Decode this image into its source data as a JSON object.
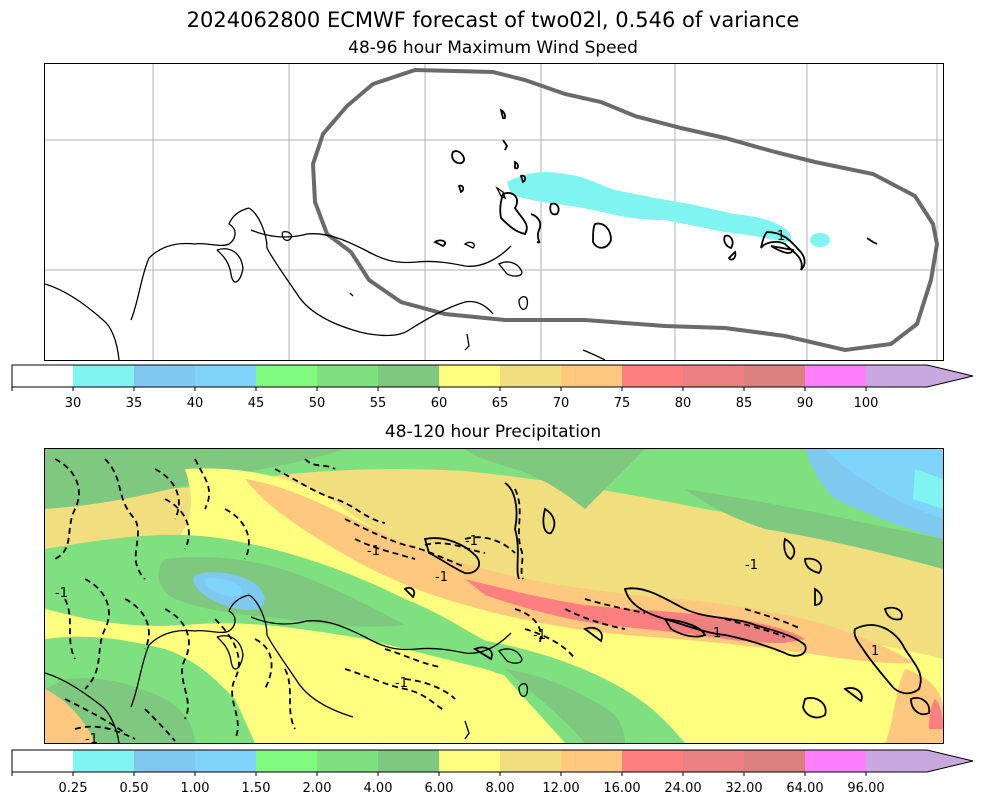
{
  "title": "2024062800 ECMWF forecast of two02l, 0.546 of variance",
  "wind_map": {
    "title": "48-96 hour Maximum Wind Speed",
    "contour_label": "1"
  },
  "precip_map": {
    "title": "48-120 hour Precipitation",
    "contour_labels": [
      "-1",
      "-1",
      "-1",
      "-1",
      "-1",
      "-1",
      "-1",
      "-1",
      "1",
      "1"
    ]
  },
  "wind_colorbar": {
    "ticks": [
      "30",
      "35",
      "40",
      "45",
      "50",
      "55",
      "60",
      "65",
      "70",
      "75",
      "80",
      "85",
      "90",
      "100"
    ],
    "colors": [
      "#ffffff",
      "#7ff4f0",
      "#7fc8f0",
      "#7fd4fc",
      "#7ffc7f",
      "#7fe07f",
      "#7fc87f",
      "#fefe7f",
      "#f0de7f",
      "#fec87f",
      "#fe7f7f",
      "#ec7f7f",
      "#dc7f7f",
      "#fe7ffe",
      "#c8a8de"
    ]
  },
  "precip_colorbar": {
    "ticks": [
      "0.25",
      "0.50",
      "1.00",
      "1.50",
      "2.00",
      "4.00",
      "6.00",
      "8.00",
      "12.00",
      "16.00",
      "24.00",
      "32.00",
      "64.00",
      "96.00"
    ],
    "colors": [
      "#ffffff",
      "#7ff4f0",
      "#7fc8f0",
      "#7fd4fc",
      "#7ffc7f",
      "#7fe07f",
      "#7fc87f",
      "#fefe7f",
      "#f0de7f",
      "#fec87f",
      "#fe7f7f",
      "#ec7f7f",
      "#dc7f7f",
      "#fe7ffe",
      "#c8a8de"
    ]
  }
}
